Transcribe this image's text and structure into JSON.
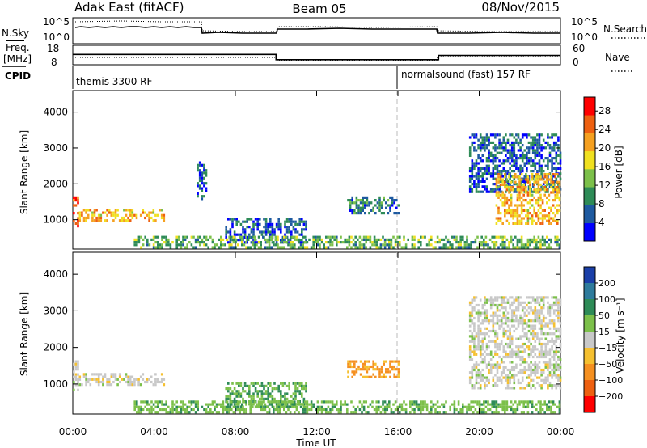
{
  "header": {
    "radar": "Adak East (fitACF)",
    "beam": "Beam 05",
    "date": "08/Nov/2015"
  },
  "noise_panel": {
    "left_label": "N.Sky",
    "right_label": "N.Search",
    "left_ticks": [
      "10^5",
      "10^0"
    ],
    "right_ticks": [
      "10^5",
      "10^0"
    ]
  },
  "freq_panel": {
    "left_label_line1": "Freq.",
    "left_label_line2": "[MHz]",
    "right_label": "Nave",
    "left_ticks": [
      "18",
      "8"
    ],
    "right_ticks": [
      "60",
      "0"
    ],
    "freq_steps": [
      {
        "t0": 0.0,
        "t1": 10.0,
        "mhz": 13.3
      },
      {
        "t0": 10.0,
        "t1": 18.0,
        "mhz": 10.6
      },
      {
        "t0": 18.0,
        "t1": 24.0,
        "mhz": 12.8
      }
    ]
  },
  "cpid": {
    "label": "CPID",
    "modes": [
      {
        "t": 0.0,
        "text": "themis 3300 RF"
      },
      {
        "t": 16.0,
        "text": "normalsound (fast) 157 RF"
      }
    ]
  },
  "time_axis": {
    "label": "Time UT",
    "ticks": [
      "00:00",
      "04:00",
      "08:00",
      "12:00",
      "16:00",
      "20:00",
      "00:00"
    ],
    "tick_hours": [
      0,
      4,
      8,
      12,
      16,
      20,
      24
    ]
  },
  "chart_data": [
    {
      "type": "heatmap",
      "ylabel": "Slant Range [km]",
      "xlabel": "",
      "ylim": [
        180,
        4600
      ],
      "yticks": [
        "1000",
        "2000",
        "3000",
        "4000"
      ],
      "ytick_values": [
        1000,
        2000,
        3000,
        4000
      ],
      "colorbar": {
        "label": "Power [dB]",
        "ticks": [
          "4",
          "8",
          "12",
          "16",
          "20",
          "24",
          "28"
        ],
        "tick_values": [
          4,
          8,
          12,
          16,
          20,
          24,
          28
        ],
        "range": [
          0,
          31
        ],
        "colors": [
          "#0000ff",
          "#1e5aa0",
          "#2e8b57",
          "#7cc04a",
          "#f0e020",
          "#f5a020",
          "#ee6010",
          "#ff0000"
        ]
      },
      "regions": [
        {
          "t": [
            0.0,
            0.3
          ],
          "r": [
            850,
            1650
          ],
          "value": 26
        },
        {
          "t": [
            0.3,
            4.5
          ],
          "r": [
            950,
            1300
          ],
          "value": 20
        },
        {
          "t": [
            6.1,
            6.6
          ],
          "r": [
            1600,
            2700
          ],
          "value": 6
        },
        {
          "t": [
            7.5,
            11.5
          ],
          "r": [
            400,
            1050
          ],
          "value": 6
        },
        {
          "t": [
            13.5,
            16.0
          ],
          "r": [
            1200,
            1650
          ],
          "value": 8
        },
        {
          "t": [
            3.0,
            24.0
          ],
          "r": [
            200,
            550
          ],
          "value": 12
        },
        {
          "t": [
            19.5,
            24.0
          ],
          "r": [
            1800,
            3400
          ],
          "value": 6
        },
        {
          "t": [
            20.8,
            24.0
          ],
          "r": [
            900,
            2300
          ],
          "value": 20
        }
      ]
    },
    {
      "type": "heatmap",
      "ylabel": "Slant Range [km]",
      "xlabel": "Time UT",
      "ylim": [
        180,
        4600
      ],
      "yticks": [
        "1000",
        "2000",
        "3000",
        "4000"
      ],
      "ytick_values": [
        1000,
        2000,
        3000,
        4000
      ],
      "colorbar": {
        "label": "Velocity [m s⁻¹]",
        "ticks": [
          "200",
          "100",
          "50",
          "15",
          "−15",
          "−50",
          "−100",
          "−200"
        ],
        "tick_values": [
          200,
          100,
          50,
          15,
          -15,
          -50,
          -100,
          -200
        ],
        "colors": [
          "#1a3fa8",
          "#2e7b9c",
          "#2e8b57",
          "#7cc04a",
          "#c8c8c8",
          "#f5c030",
          "#f59020",
          "#ee6010",
          "#ff0000"
        ]
      },
      "regions": [
        {
          "t": [
            0.0,
            0.3
          ],
          "r": [
            850,
            1650
          ],
          "value": 0
        },
        {
          "t": [
            0.3,
            4.5
          ],
          "r": [
            950,
            1300
          ],
          "value": 0
        },
        {
          "t": [
            7.5,
            11.5
          ],
          "r": [
            400,
            1050
          ],
          "value": 50
        },
        {
          "t": [
            13.5,
            16.0
          ],
          "r": [
            1200,
            1650
          ],
          "value": -60
        },
        {
          "t": [
            3.0,
            24.0
          ],
          "r": [
            200,
            550
          ],
          "value": 40
        },
        {
          "t": [
            19.5,
            24.0
          ],
          "r": [
            900,
            3400
          ],
          "value": 0
        }
      ]
    }
  ]
}
